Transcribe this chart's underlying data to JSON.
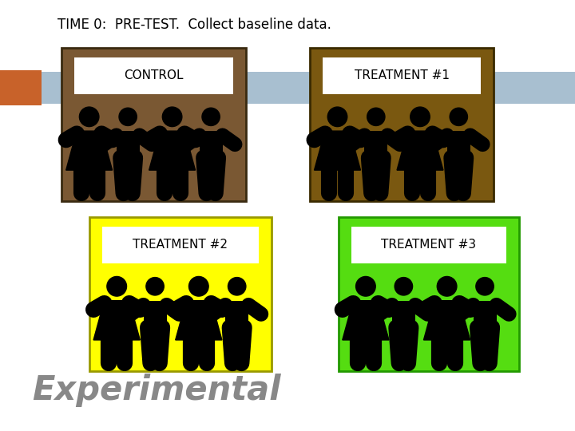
{
  "title": "TIME 0:  PRE-TEST.  Collect baseline data.",
  "bg_color": "#ffffff",
  "banner_color": "#a8bfd0",
  "orange_color": "#c8622a",
  "boxes": [
    {
      "label": "CONTROL",
      "bg": "#7a5833",
      "border": "#3a2a10",
      "col": 0,
      "row": 0
    },
    {
      "label": "TREATMENT #1",
      "bg": "#7a5810",
      "border": "#3a2a00",
      "col": 1,
      "row": 0
    },
    {
      "label": "TREATMENT #2",
      "bg": "#ffff00",
      "border": "#999900",
      "col": 0,
      "row": 1
    },
    {
      "label": "TREATMENT #3",
      "bg": "#55dd11",
      "border": "#229900",
      "col": 1,
      "row": 1
    }
  ],
  "experimental_text": "Experimental",
  "experimental_color": "#888888"
}
